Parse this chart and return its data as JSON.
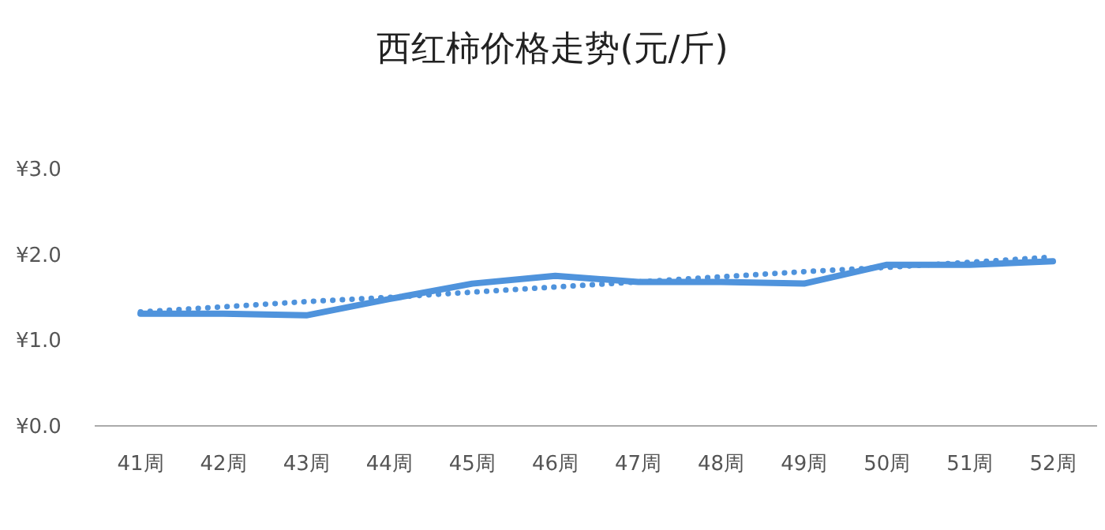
{
  "chart_data": {
    "type": "line",
    "title": "西红柿价格走势(元/斤)",
    "categories": [
      "41周",
      "42周",
      "43周",
      "44周",
      "45周",
      "46周",
      "47周",
      "48周",
      "49周",
      "50周",
      "51周",
      "52周"
    ],
    "series": [
      {
        "color": "#4f93dc",
        "line_style": "solid",
        "values": [
          1.31,
          1.31,
          1.29,
          1.48,
          1.66,
          1.75,
          1.68,
          1.68,
          1.66,
          1.88,
          1.88,
          1.92
        ]
      },
      {
        "color": "#4f93dc",
        "line_style": "dotted",
        "values": [
          1.33,
          1.39,
          1.45,
          1.5,
          1.56,
          1.62,
          1.68,
          1.74,
          1.8,
          1.85,
          1.91,
          1.97
        ]
      }
    ],
    "ylim": [
      0,
      3
    ],
    "yticks": [
      {
        "value": 0,
        "label": "¥0.0"
      },
      {
        "value": 1,
        "label": "¥1.0"
      },
      {
        "value": 2,
        "label": "¥2.0"
      },
      {
        "value": 3,
        "label": "¥3.0"
      }
    ],
    "grid": false
  }
}
